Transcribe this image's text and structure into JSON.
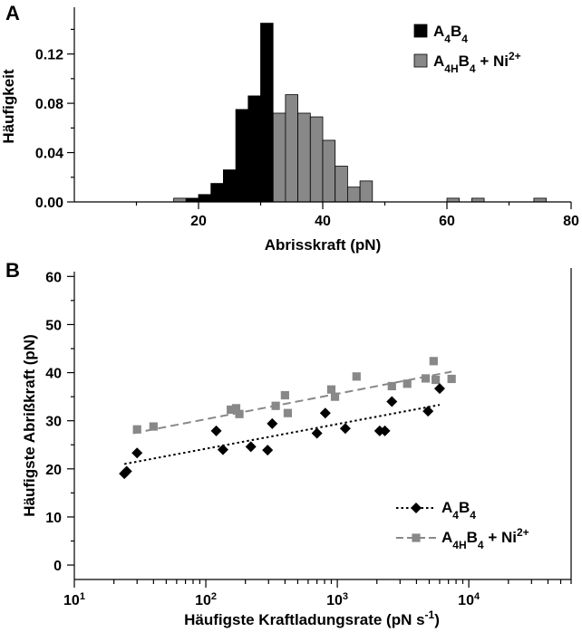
{
  "chart_data": [
    {
      "type": "bar",
      "panel_label": "A",
      "xlabel": "Abrisskraft (pN)",
      "ylabel": "Häufigkeit",
      "xlim": [
        0,
        80
      ],
      "ylim": [
        0,
        0.155
      ],
      "x_ticks": [
        "20",
        "40",
        "60",
        "80"
      ],
      "y_ticks": [
        "0.00",
        "0.04",
        "0.08",
        "0.12"
      ],
      "bin_width": 2,
      "legend_position": "top-right",
      "series": [
        {
          "name_parts": [
            "A",
            "4",
            "B",
            "4",
            ""
          ],
          "color": "#000000",
          "bins": [
            {
              "x": 18,
              "y": 0.003
            },
            {
              "x": 20,
              "y": 0.006
            },
            {
              "x": 22,
              "y": 0.015
            },
            {
              "x": 24,
              "y": 0.026
            },
            {
              "x": 26,
              "y": 0.075
            },
            {
              "x": 28,
              "y": 0.086
            },
            {
              "x": 30,
              "y": 0.145
            }
          ]
        },
        {
          "name_parts": [
            "A",
            "4H",
            "B",
            "4",
            " + Ni",
            "2+"
          ],
          "color": "#888888",
          "bins": [
            {
              "x": 16,
              "y": 0.003
            },
            {
              "x": 18,
              "y": 0.003
            },
            {
              "x": 20,
              "y": 0.003
            },
            {
              "x": 22,
              "y": 0.003
            },
            {
              "x": 24,
              "y": 0.006
            },
            {
              "x": 26,
              "y": 0.009
            },
            {
              "x": 28,
              "y": 0.012
            },
            {
              "x": 30,
              "y": 0.052
            },
            {
              "x": 32,
              "y": 0.072
            },
            {
              "x": 34,
              "y": 0.087
            },
            {
              "x": 36,
              "y": 0.072
            },
            {
              "x": 38,
              "y": 0.069
            },
            {
              "x": 40,
              "y": 0.05
            },
            {
              "x": 42,
              "y": 0.029
            },
            {
              "x": 44,
              "y": 0.012
            },
            {
              "x": 46,
              "y": 0.017
            },
            {
              "x": 60,
              "y": 0.003
            },
            {
              "x": 64,
              "y": 0.003
            },
            {
              "x": 74,
              "y": 0.003
            }
          ]
        }
      ]
    },
    {
      "type": "scatter",
      "panel_label": "B",
      "xlabel_parts": [
        "Häufigste Kraftladungsrate (pN s",
        "-1",
        ")"
      ],
      "ylabel": "Häufigste Abrißkraft (pN)",
      "xscale": "log",
      "xlim": [
        10,
        60000
      ],
      "ylim": [
        -3,
        61
      ],
      "x_ticks": [
        {
          "base": "10",
          "exp": "1",
          "value": 10
        },
        {
          "base": "10",
          "exp": "2",
          "value": 100
        },
        {
          "base": "10",
          "exp": "3",
          "value": 1000
        },
        {
          "base": "10",
          "exp": "4",
          "value": 10000
        }
      ],
      "y_ticks": [
        0,
        10,
        20,
        30,
        40,
        50,
        60
      ],
      "legend_position": "bottom-right",
      "series": [
        {
          "name_parts": [
            "A",
            "4",
            "B",
            "4",
            ""
          ],
          "color": "#000000",
          "marker": "diamond",
          "line_style": "dotted",
          "points": [
            [
              24,
              19
            ],
            [
              25,
              19.5
            ],
            [
              30,
              23.3
            ],
            [
              120,
              27.9
            ],
            [
              135,
              24
            ],
            [
              220,
              24.6
            ],
            [
              295,
              23.9
            ],
            [
              320,
              29.4
            ],
            [
              700,
              27.4
            ],
            [
              810,
              31.6
            ],
            [
              1150,
              28.4
            ],
            [
              2100,
              27.9
            ],
            [
              2300,
              27.9
            ],
            [
              2600,
              34
            ],
            [
              4900,
              32
            ],
            [
              6000,
              36.7
            ]
          ],
          "fit": [
            [
              24,
              21
            ],
            [
              6000,
              33.3
            ]
          ]
        },
        {
          "name_parts": [
            "A",
            "4H",
            "B",
            "4",
            " + Ni",
            "2+"
          ],
          "color": "#888888",
          "marker": "square",
          "line_style": "dashed",
          "points": [
            [
              30,
              28.2
            ],
            [
              40,
              28.8
            ],
            [
              155,
              32.3
            ],
            [
              170,
              32.6
            ],
            [
              180,
              31.4
            ],
            [
              340,
              33.1
            ],
            [
              400,
              35.3
            ],
            [
              420,
              31.6
            ],
            [
              900,
              36.5
            ],
            [
              960,
              35
            ],
            [
              1400,
              39.2
            ],
            [
              2600,
              37.2
            ],
            [
              3400,
              37.7
            ],
            [
              4700,
              38.8
            ],
            [
              5400,
              42.4
            ],
            [
              5600,
              38.5
            ],
            [
              7400,
              38.7
            ]
          ],
          "fit": [
            [
              28,
              27.4
            ],
            [
              7400,
              40.2
            ]
          ]
        }
      ]
    }
  ]
}
